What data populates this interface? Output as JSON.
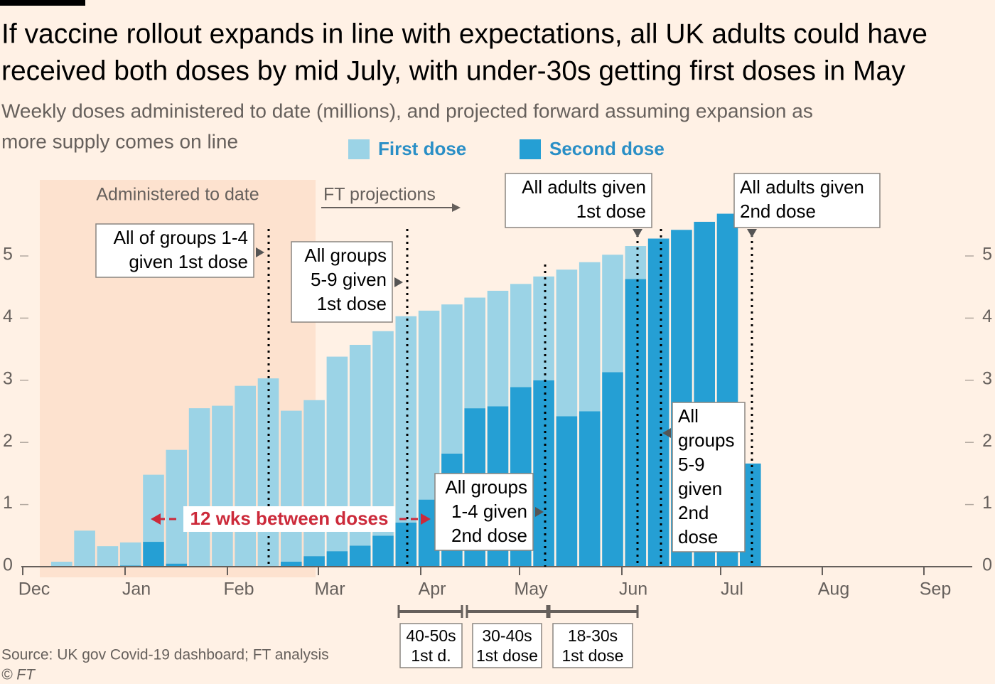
{
  "chart_data": {
    "type": "bar",
    "stacked": true,
    "title": [
      "If vaccine rollout expands in line with expectations, all UK adults could have",
      "received both doses by mid July, with under-30s getting first doses in May"
    ],
    "subtitle": [
      "Weekly doses administered to date (millions), and projected forward assuming expansion as",
      "more supply comes on line"
    ],
    "categories": [
      null,
      null,
      null,
      null,
      null,
      null,
      null,
      null,
      null,
      null,
      null,
      null,
      null,
      null,
      null,
      null,
      null,
      null,
      null,
      null,
      null,
      null,
      null,
      null,
      null,
      null,
      null,
      null,
      null,
      null,
      null
    ],
    "months": [
      "Dec",
      "Jan",
      "Feb",
      "Mar",
      "Apr",
      "May",
      "Jun",
      "Jul",
      "Aug",
      "Sep"
    ],
    "series": [
      {
        "name": "First dose",
        "color": "#9bd3e6",
        "values": [
          0.08,
          0.58,
          0.33,
          0.37,
          1.08,
          1.83,
          2.55,
          2.59,
          2.91,
          3.03,
          2.43,
          2.51,
          3.13,
          3.23,
          3.29,
          3.32,
          3.04,
          2.4,
          1.78,
          1.86,
          1.66,
          1.67,
          2.36,
          2.4,
          1.89,
          0.53,
          0,
          0,
          0,
          0,
          0
        ]
      },
      {
        "name": "Second dose",
        "color": "#259fd4",
        "values": [
          0,
          0,
          0,
          0.02,
          0.4,
          0.05,
          0,
          0,
          0,
          0,
          0.08,
          0.17,
          0.25,
          0.34,
          0.5,
          0.71,
          1.08,
          1.82,
          2.55,
          2.58,
          2.89,
          3.0,
          2.42,
          2.5,
          3.13,
          4.63,
          5.28,
          5.42,
          5.55,
          5.68,
          1.66
        ]
      }
    ],
    "ylim": [
      0,
      6
    ],
    "yticks": [
      0,
      1,
      2,
      3,
      4,
      5
    ],
    "annotations": {
      "shaded": "Administered to date",
      "projection": "FT projections",
      "callouts": [
        {
          "lines": [
            "All of groups 1-4",
            "given 1st dose"
          ]
        },
        {
          "lines": [
            "All groups",
            "5-9 given",
            "1st dose"
          ]
        },
        {
          "lines": [
            "All adults given",
            "1st dose"
          ]
        },
        {
          "lines": [
            "All adults given",
            "2nd dose"
          ]
        },
        {
          "lines": [
            "All groups",
            "1-4 given",
            "2nd dose"
          ]
        },
        {
          "lines": [
            "All",
            "groups",
            "5-9",
            "given",
            "2nd",
            "dose"
          ]
        }
      ],
      "gap": "12 wks between doses",
      "cohorts": [
        {
          "lines": [
            "40-50s",
            "1st d."
          ]
        },
        {
          "lines": [
            "30-40s",
            "1st dose"
          ]
        },
        {
          "lines": [
            "18-30s",
            "1st dose"
          ]
        }
      ]
    },
    "source": "Source: UK gov Covid-19 dashboard; FT analysis",
    "credit": "© FT"
  }
}
